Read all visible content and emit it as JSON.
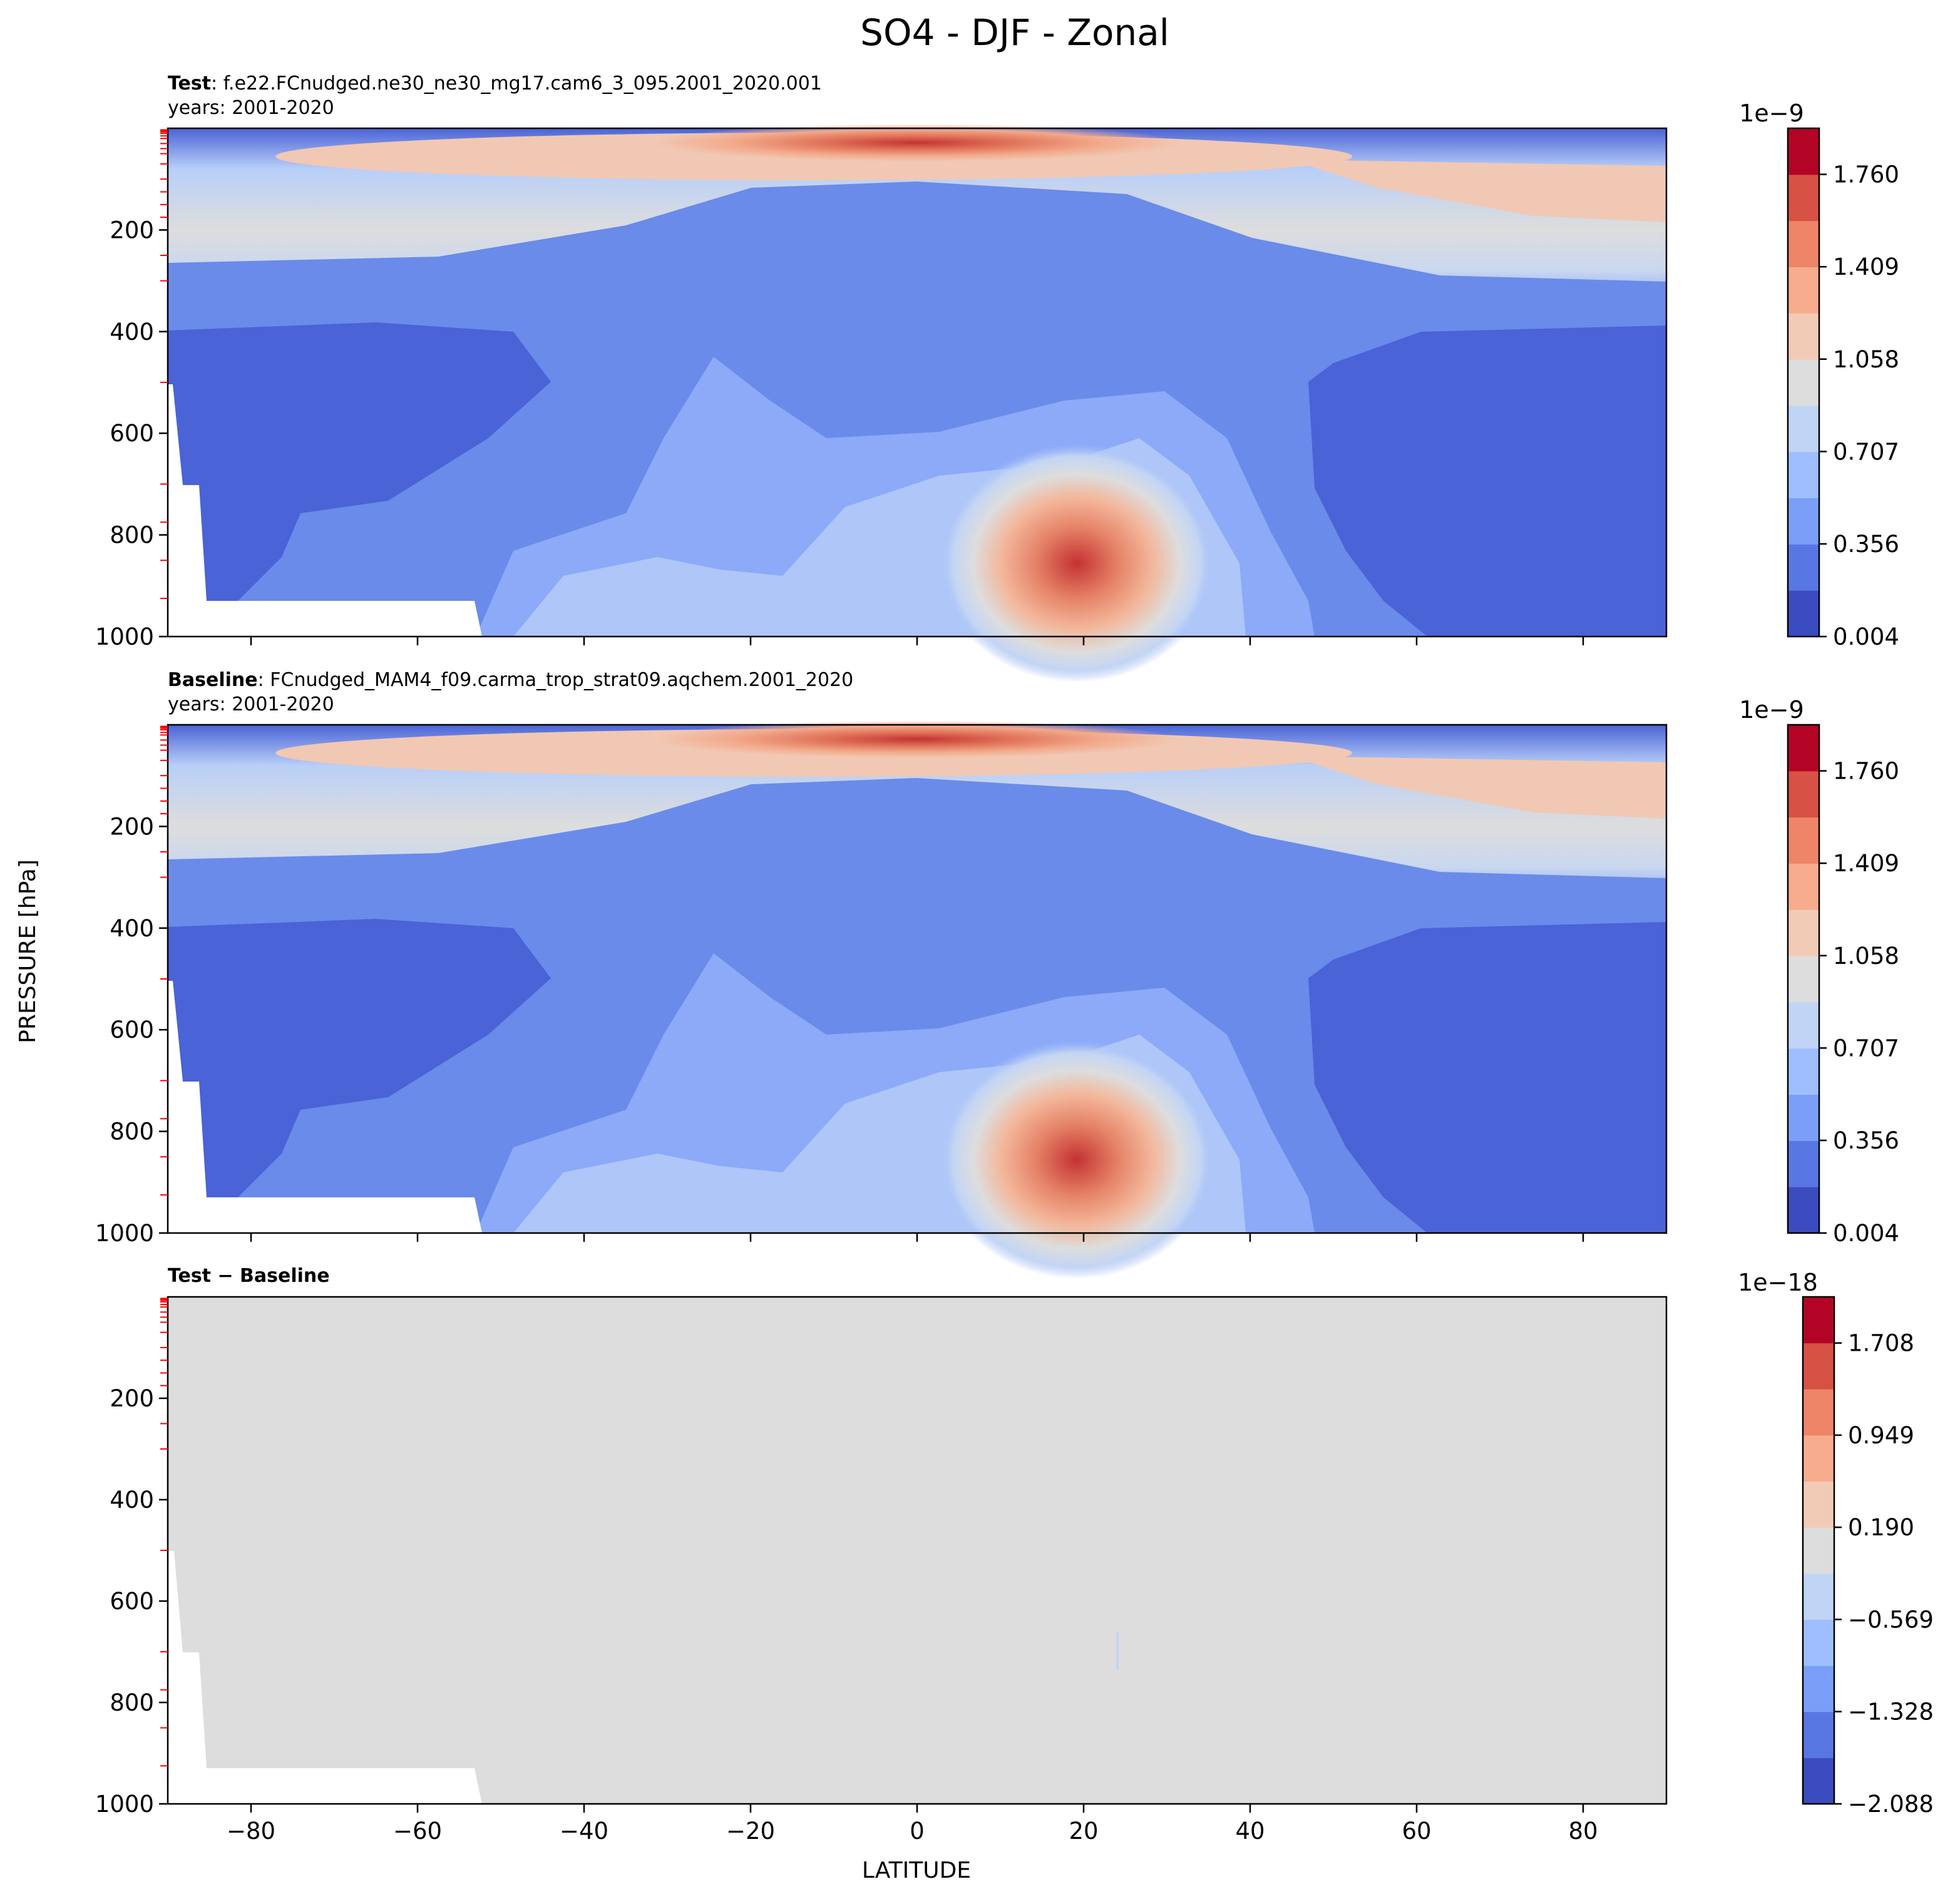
{
  "figure": {
    "title": "SO4 - DJF - Zonal",
    "ylabel": "PRESSURE [hPa]",
    "xlabel": "LATITUDE"
  },
  "chart_data": [
    {
      "type": "heatmap",
      "panel": "test",
      "label_bold": "Test",
      "label_rest": ": f.e22.FCnudged.ne30_ne30_mg17.cam6_3_095.2001_2020.001",
      "years": "years: 2001-2020",
      "xlim": [
        -90,
        90
      ],
      "ylim": [
        1000,
        0
      ],
      "xticks": [
        "−80",
        "−60",
        "−40",
        "−20",
        "0",
        "20",
        "40",
        "60",
        "80"
      ],
      "yticks": [
        "200",
        "400",
        "600",
        "800",
        "1000"
      ],
      "colorbar": {
        "exponent": "1e−9",
        "ticks": [
          "0.004",
          "0.356",
          "0.707",
          "1.058",
          "1.409",
          "1.760"
        ],
        "range": [
          0.004,
          1.935
        ]
      }
    },
    {
      "type": "heatmap",
      "panel": "baseline",
      "label_bold": "Baseline",
      "label_rest": ": FCnudged_MAM4_f09.carma_trop_strat09.aqchem.2001_2020",
      "years": "years: 2001-2020",
      "xlim": [
        -90,
        90
      ],
      "ylim": [
        1000,
        0
      ],
      "xticks": [
        "−80",
        "−60",
        "−40",
        "−20",
        "0",
        "20",
        "40",
        "60",
        "80"
      ],
      "yticks": [
        "200",
        "400",
        "600",
        "800",
        "1000"
      ],
      "colorbar": {
        "exponent": "1e−9",
        "ticks": [
          "0.004",
          "0.356",
          "0.707",
          "1.058",
          "1.409",
          "1.760"
        ],
        "range": [
          0.004,
          1.935
        ]
      }
    },
    {
      "type": "heatmap",
      "panel": "difference",
      "label_bold": "Test − Baseline",
      "xlim": [
        -90,
        90
      ],
      "ylim": [
        1000,
        0
      ],
      "xticks": [
        "−80",
        "−60",
        "−40",
        "−20",
        "0",
        "20",
        "40",
        "60",
        "80"
      ],
      "yticks": [
        "200",
        "400",
        "600",
        "800",
        "1000"
      ],
      "colorbar": {
        "exponent": "1e−18",
        "ticks": [
          "−2.088",
          "−1.328",
          "−0.569",
          "0.190",
          "0.949",
          "1.708"
        ],
        "range": [
          -2.088,
          2.088
        ]
      }
    }
  ]
}
